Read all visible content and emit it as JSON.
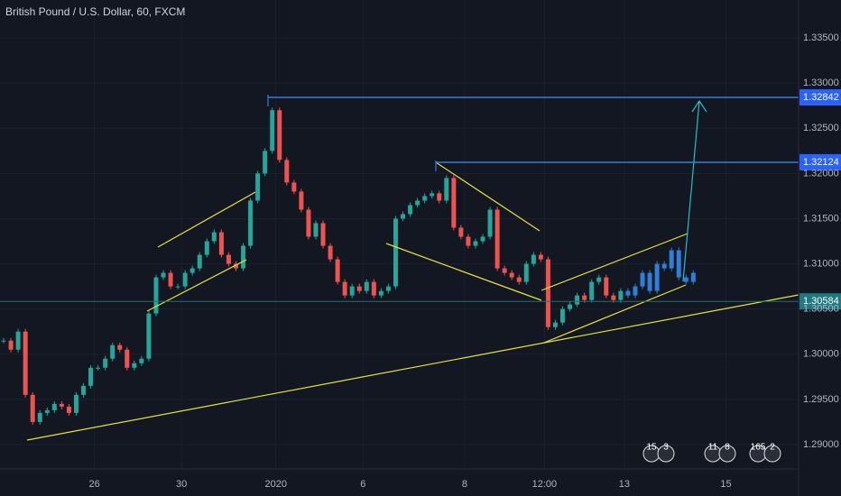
{
  "chart_data": {
    "type": "candlestick",
    "title": "British Pound / U.S. Dollar, 60, FXCM",
    "up_color": "#26a69a",
    "down_color": "#ef5350",
    "grid": true,
    "xlim": [
      0,
      110
    ],
    "ylim": [
      1.2873,
      1.3392
    ],
    "xticks": [
      {
        "value": 13,
        "label": "26"
      },
      {
        "value": 25,
        "label": "30"
      },
      {
        "value": 38,
        "label": "2020"
      },
      {
        "value": 50,
        "label": "6"
      },
      {
        "value": 64,
        "label": "8"
      },
      {
        "value": 75,
        "label": "12:00"
      },
      {
        "value": 86,
        "label": "13"
      },
      {
        "value": 100,
        "label": "15"
      }
    ],
    "yticks": [
      {
        "value": 1.29,
        "label": "1.29000"
      },
      {
        "value": 1.295,
        "label": "1.29500"
      },
      {
        "value": 1.3,
        "label": "1.30000"
      },
      {
        "value": 1.305,
        "label": "1.30500"
      },
      {
        "value": 1.31,
        "label": "1.31000"
      },
      {
        "value": 1.315,
        "label": "1.31500"
      },
      {
        "value": 1.32,
        "label": "1.32000"
      },
      {
        "value": 1.325,
        "label": "1.32500"
      },
      {
        "value": 1.33,
        "label": "1.33000"
      },
      {
        "value": 1.335,
        "label": "1.33500"
      }
    ],
    "series": [
      {
        "values": [
          1.3015,
          1.3005,
          1.3025,
          1.2955,
          1.2925,
          1.2935,
          1.2938,
          1.2945,
          1.2942,
          1.2935,
          1.2955,
          1.2965,
          1.2985,
          1.2985,
          1.2995,
          1.301,
          1.3005,
          1.2985,
          1.299,
          1.2995,
          1.3045,
          1.3085,
          1.309,
          1.3075,
          1.3075,
          1.309,
          1.3095,
          1.311,
          1.3125,
          1.3135,
          1.311,
          1.31,
          1.3095,
          1.312,
          1.317,
          1.32,
          1.3225,
          1.327,
          1.3215,
          1.319,
          1.318,
          1.316,
          1.313,
          1.3145,
          1.312,
          1.3105,
          1.308,
          1.3065,
          1.3075,
          1.307,
          1.308,
          1.3065,
          1.307,
          1.3075,
          1.315,
          1.3155,
          1.3165,
          1.317,
          1.3175,
          1.3178,
          1.317,
          1.3195,
          1.314,
          1.313,
          1.312,
          1.3125,
          1.313,
          1.316,
          1.3095,
          1.309,
          1.3085,
          1.308,
          1.31,
          1.311,
          1.3105,
          1.303,
          1.3035,
          1.305,
          1.3055,
          1.3065,
          1.306,
          1.308,
          1.3085,
          1.3065,
          1.306,
          1.307
        ]
      },
      {
        "color": "#2f7fd8",
        "values": [
          1.3065,
          1.3075,
          1.309,
          1.307,
          1.31,
          1.3095,
          1.3115,
          1.3085,
          1.308,
          1.309
        ]
      }
    ],
    "levels": [
      {
        "value": 1.32842,
        "label": "1.32842",
        "color": "#2962ff"
      },
      {
        "value": 1.32124,
        "label": "1.32124",
        "color": "#2962ff"
      },
      {
        "value": 1.30584,
        "label": "1.30584",
        "color": "#1f7a80"
      }
    ],
    "event_badges": [
      "15",
      "3",
      "11",
      "8",
      "165",
      "2"
    ]
  }
}
